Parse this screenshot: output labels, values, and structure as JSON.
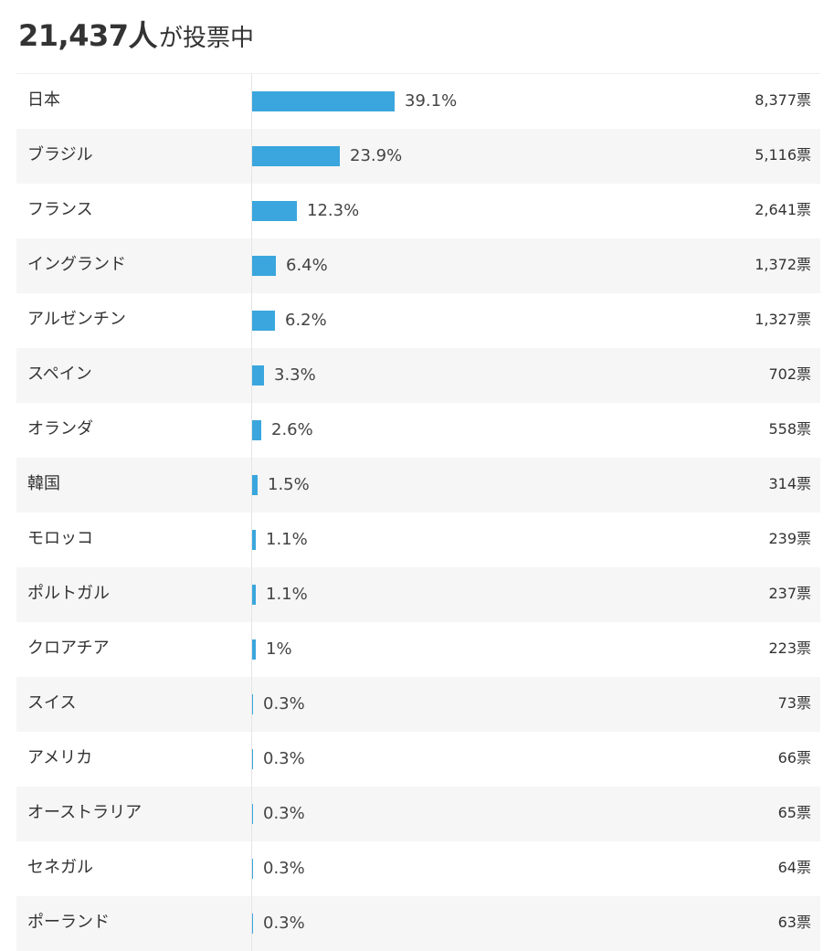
{
  "header": {
    "total": "21,437人",
    "suffix": "が投票中"
  },
  "chart_data": {
    "type": "bar",
    "orientation": "horizontal",
    "categories": [
      "日本",
      "ブラジル",
      "フランス",
      "イングランド",
      "アルゼンチン",
      "スペイン",
      "オランダ",
      "韓国",
      "モロッコ",
      "ポルトガル",
      "クロアチア",
      "スイス",
      "アメリカ",
      "オーストラリア",
      "セネガル",
      "ポーランド"
    ],
    "values": [
      39.1,
      23.9,
      12.3,
      6.4,
      6.2,
      3.3,
      2.6,
      1.5,
      1.1,
      1.1,
      1.0,
      0.3,
      0.3,
      0.3,
      0.3,
      0.3
    ],
    "percent_labels": [
      "39.1%",
      "23.9%",
      "12.3%",
      "6.4%",
      "6.2%",
      "3.3%",
      "2.6%",
      "1.5%",
      "1.1%",
      "1.1%",
      "1%",
      "0.3%",
      "0.3%",
      "0.3%",
      "0.3%",
      "0.3%"
    ],
    "vote_labels": [
      "8,377票",
      "5,116票",
      "2,641票",
      "1,372票",
      "1,327票",
      "702票",
      "558票",
      "314票",
      "239票",
      "237票",
      "223票",
      "73票",
      "66票",
      "65票",
      "64票",
      "63票"
    ],
    "xlim": [
      0,
      100
    ],
    "bar_color": "#3aa6dd"
  }
}
